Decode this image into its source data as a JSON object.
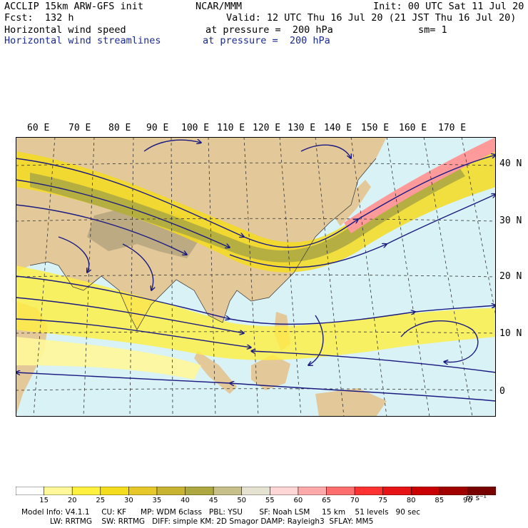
{
  "header": {
    "model": "ACCLIP 15km ARW-GFS init",
    "org": "NCAR/MMM",
    "init": "Init: 00 UTC Sat 11 Jul 20",
    "fcst": "Fcst:  132 h",
    "valid": "Valid: 12 UTC Thu 16 Jul 20 (21 JST Thu 16 Jul 20)",
    "field1": "Horizontal wind speed",
    "field1_level": "at pressure =  200 hPa",
    "field1_sm": "sm= 1",
    "field2": "Horizontal wind streamlines",
    "field2_level": "at pressure =  200 hPa"
  },
  "map": {
    "lon_labels": [
      "60 E",
      "70 E",
      "80 E",
      "90 E",
      "100 E",
      "110 E",
      "120 E",
      "130 E",
      "140 E",
      "150 E",
      "160 E",
      "170 E"
    ],
    "lat_labels": [
      "40 N",
      "30 N",
      "20 N",
      "10 N",
      "0"
    ]
  },
  "colorbar": {
    "labels": [
      "15",
      "20",
      "25",
      "30",
      "35",
      "40",
      "45",
      "50",
      "55",
      "60",
      "65",
      "70",
      "75",
      "80",
      "85",
      "90"
    ],
    "unit": "m s⁻¹",
    "colors": [
      "#ffffff",
      "#fff799",
      "#ffef3f",
      "#f4dc1e",
      "#e6c82a",
      "#c8b432",
      "#aea842",
      "#c8c08a",
      "#e6e2d2",
      "#ffd6d6",
      "#ffaaaa",
      "#ff6e6e",
      "#ff3232",
      "#e61414",
      "#c80000",
      "#a00000",
      "#780000"
    ]
  },
  "footer": {
    "line1": "Model Info: V4.1.1     CU: KF      MP: WDM 6class   PBL: YSU       SF: Noah LSM     15 km    51 levels   90 sec",
    "line2": "LW: RRTMG    SW: RRTMG   DIFF: simple KM: 2D Smagor DAMP: Rayleigh3  SFLAY: MM5"
  }
}
